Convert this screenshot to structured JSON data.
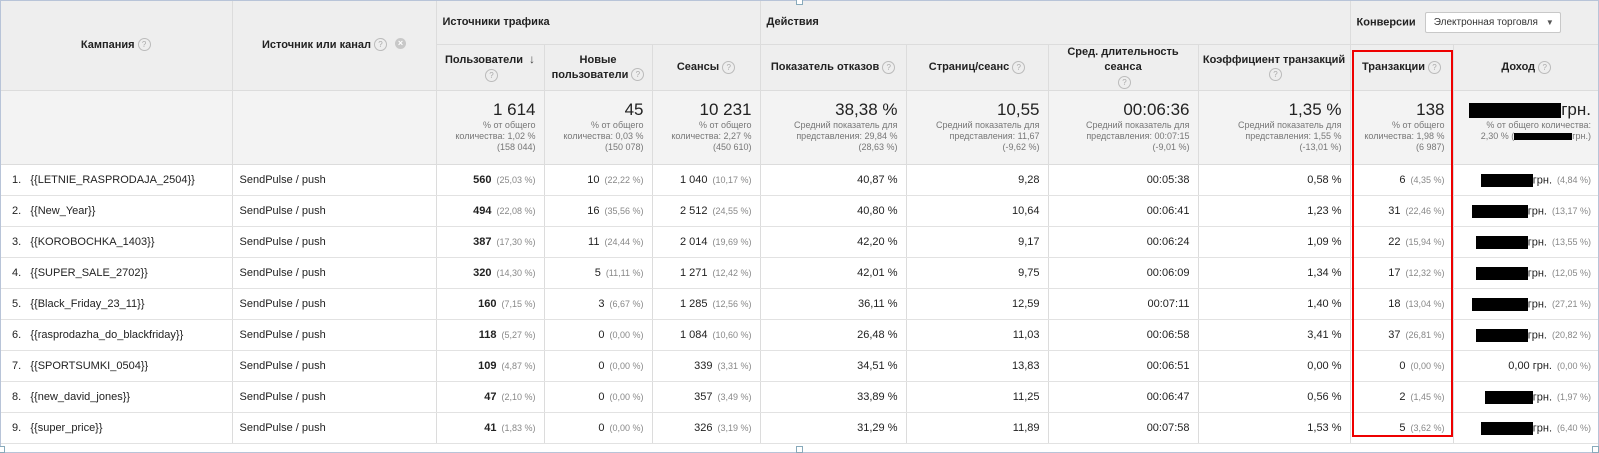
{
  "groups": {
    "traffic": "Источники трафика",
    "actions": "Действия",
    "conversions": "Конверсии",
    "conversion_select": "Электронная торговля"
  },
  "columns": {
    "campaign": "Кампания",
    "source": "Источник или канал",
    "users": "Пользователи",
    "new_users_1": "Новые",
    "new_users_2": "пользователи",
    "sessions": "Сеансы",
    "bounce": "Показатель отказов",
    "pages": "Страниц/сеанс",
    "duration": "Сред. длительность сеанса",
    "conv_rate": "Коэффициент транзакций",
    "transactions": "Транзакции",
    "revenue": "Доход"
  },
  "icons": {
    "help": "help-circle-icon",
    "remove": "remove-dimension-icon",
    "sort": "sort-down-arrow-icon",
    "dropdown": "chevron-down-icon"
  },
  "totals": {
    "users": {
      "big": "1 614",
      "l1": "% от общего",
      "l2": "количества: 1,02 %",
      "l3": "(158 044)"
    },
    "new_users": {
      "big": "45",
      "l1": "% от общего",
      "l2": "количества: 0,03 %",
      "l3": "(150 078)"
    },
    "sessions": {
      "big": "10 231",
      "l1": "% от общего",
      "l2": "количества: 2,27 %",
      "l3": "(450 610)"
    },
    "bounce": {
      "big": "38,38 %",
      "l1": "Средний показатель для",
      "l2": "представления: 29,84 %",
      "l3": "(28,63 %)"
    },
    "pages": {
      "big": "10,55",
      "l1": "Средний показатель для",
      "l2": "представления: 11,67",
      "l3": "(-9,62 %)"
    },
    "duration": {
      "big": "00:06:36",
      "l1": "Средний показатель для",
      "l2": "представления: 00:07:15",
      "l3": "(-9,01 %)"
    },
    "conv_rate": {
      "big": "1,35 %",
      "l1": "Средний показатель для",
      "l2": "представления: 1,55 %",
      "l3": "(-13,01 %)"
    },
    "transactions": {
      "big": "138",
      "l1": "% от общего",
      "l2": "количества: 1,98 %",
      "l3": "(6 987)"
    },
    "revenue": {
      "big": "грн.",
      "l1": "% от общего количества:",
      "l2": "2,30 % (",
      "l3": "грн.)"
    }
  },
  "rows": [
    {
      "idx": "1.",
      "campaign": "{{LETNIE_RASPRODAJA_2504}}",
      "source": "SendPulse / push",
      "users": "560",
      "users_pct": "(25,03 %)",
      "new_users": "10",
      "new_users_pct": "(22,22 %)",
      "sessions": "1 040",
      "sessions_pct": "(10,17 %)",
      "bounce": "40,87 %",
      "pages": "9,28",
      "duration": "00:05:38",
      "conv_rate": "0,58 %",
      "transactions": "6",
      "transactions_pct": "(4,35 %)",
      "revenue": "грн.",
      "revenue_pct": "(4,84 %)"
    },
    {
      "idx": "2.",
      "campaign": "{{New_Year}}",
      "source": "SendPulse / push",
      "users": "494",
      "users_pct": "(22,08 %)",
      "new_users": "16",
      "new_users_pct": "(35,56 %)",
      "sessions": "2 512",
      "sessions_pct": "(24,55 %)",
      "bounce": "40,80 %",
      "pages": "10,64",
      "duration": "00:06:41",
      "conv_rate": "1,23 %",
      "transactions": "31",
      "transactions_pct": "(22,46 %)",
      "revenue": "грн.",
      "revenue_pct": "(13,17 %)"
    },
    {
      "idx": "3.",
      "campaign": "{{KOROBOCHKA_1403}}",
      "source": "SendPulse / push",
      "users": "387",
      "users_pct": "(17,30 %)",
      "new_users": "11",
      "new_users_pct": "(24,44 %)",
      "sessions": "2 014",
      "sessions_pct": "(19,69 %)",
      "bounce": "42,20 %",
      "pages": "9,17",
      "duration": "00:06:24",
      "conv_rate": "1,09 %",
      "transactions": "22",
      "transactions_pct": "(15,94 %)",
      "revenue": "грн.",
      "revenue_pct": "(13,55 %)"
    },
    {
      "idx": "4.",
      "campaign": "{{SUPER_SALE_2702}}",
      "source": "SendPulse / push",
      "users": "320",
      "users_pct": "(14,30 %)",
      "new_users": "5",
      "new_users_pct": "(11,11 %)",
      "sessions": "1 271",
      "sessions_pct": "(12,42 %)",
      "bounce": "42,01 %",
      "pages": "9,75",
      "duration": "00:06:09",
      "conv_rate": "1,34 %",
      "transactions": "17",
      "transactions_pct": "(12,32 %)",
      "revenue": "грн.",
      "revenue_pct": "(12,05 %)"
    },
    {
      "idx": "5.",
      "campaign": "{{Black_Friday_23_11}}",
      "source": "SendPulse / push",
      "users": "160",
      "users_pct": "(7,15 %)",
      "new_users": "3",
      "new_users_pct": "(6,67 %)",
      "sessions": "1 285",
      "sessions_pct": "(12,56 %)",
      "bounce": "36,11 %",
      "pages": "12,59",
      "duration": "00:07:11",
      "conv_rate": "1,40 %",
      "transactions": "18",
      "transactions_pct": "(13,04 %)",
      "revenue": "грн.",
      "revenue_pct": "(27,21 %)"
    },
    {
      "idx": "6.",
      "campaign": "{{rasprodazha_do_blackfriday}}",
      "source": "SendPulse / push",
      "users": "118",
      "users_pct": "(5,27 %)",
      "new_users": "0",
      "new_users_pct": "(0,00 %)",
      "sessions": "1 084",
      "sessions_pct": "(10,60 %)",
      "bounce": "26,48 %",
      "pages": "11,03",
      "duration": "00:06:58",
      "conv_rate": "3,41 %",
      "transactions": "37",
      "transactions_pct": "(26,81 %)",
      "revenue": "грн.",
      "revenue_pct": "(20,82 %)"
    },
    {
      "idx": "7.",
      "campaign": "{{SPORTSUMKI_0504}}",
      "source": "SendPulse / push",
      "users": "109",
      "users_pct": "(4,87 %)",
      "new_users": "0",
      "new_users_pct": "(0,00 %)",
      "sessions": "339",
      "sessions_pct": "(3,31 %)",
      "bounce": "34,51 %",
      "pages": "13,83",
      "duration": "00:06:51",
      "conv_rate": "0,00 %",
      "transactions": "0",
      "transactions_pct": "(0,00 %)",
      "revenue": "0,00 грн.",
      "revenue_pct": "(0,00 %)"
    },
    {
      "idx": "8.",
      "campaign": "{{new_david_jones}}",
      "source": "SendPulse / push",
      "users": "47",
      "users_pct": "(2,10 %)",
      "new_users": "0",
      "new_users_pct": "(0,00 %)",
      "sessions": "357",
      "sessions_pct": "(3,49 %)",
      "bounce": "33,89 %",
      "pages": "11,25",
      "duration": "00:06:47",
      "conv_rate": "0,56 %",
      "transactions": "2",
      "transactions_pct": "(1,45 %)",
      "revenue": "грн.",
      "revenue_pct": "(1,97 %)"
    },
    {
      "idx": "9.",
      "campaign": "{{super_price}}",
      "source": "SendPulse / push",
      "users": "41",
      "users_pct": "(1,83 %)",
      "new_users": "0",
      "new_users_pct": "(0,00 %)",
      "sessions": "326",
      "sessions_pct": "(3,19 %)",
      "bounce": "31,29 %",
      "pages": "11,89",
      "duration": "00:07:58",
      "conv_rate": "1,53 %",
      "transactions": "5",
      "transactions_pct": "(3,62 %)",
      "revenue": "грн.",
      "revenue_pct": "(6,40 %)"
    }
  ]
}
